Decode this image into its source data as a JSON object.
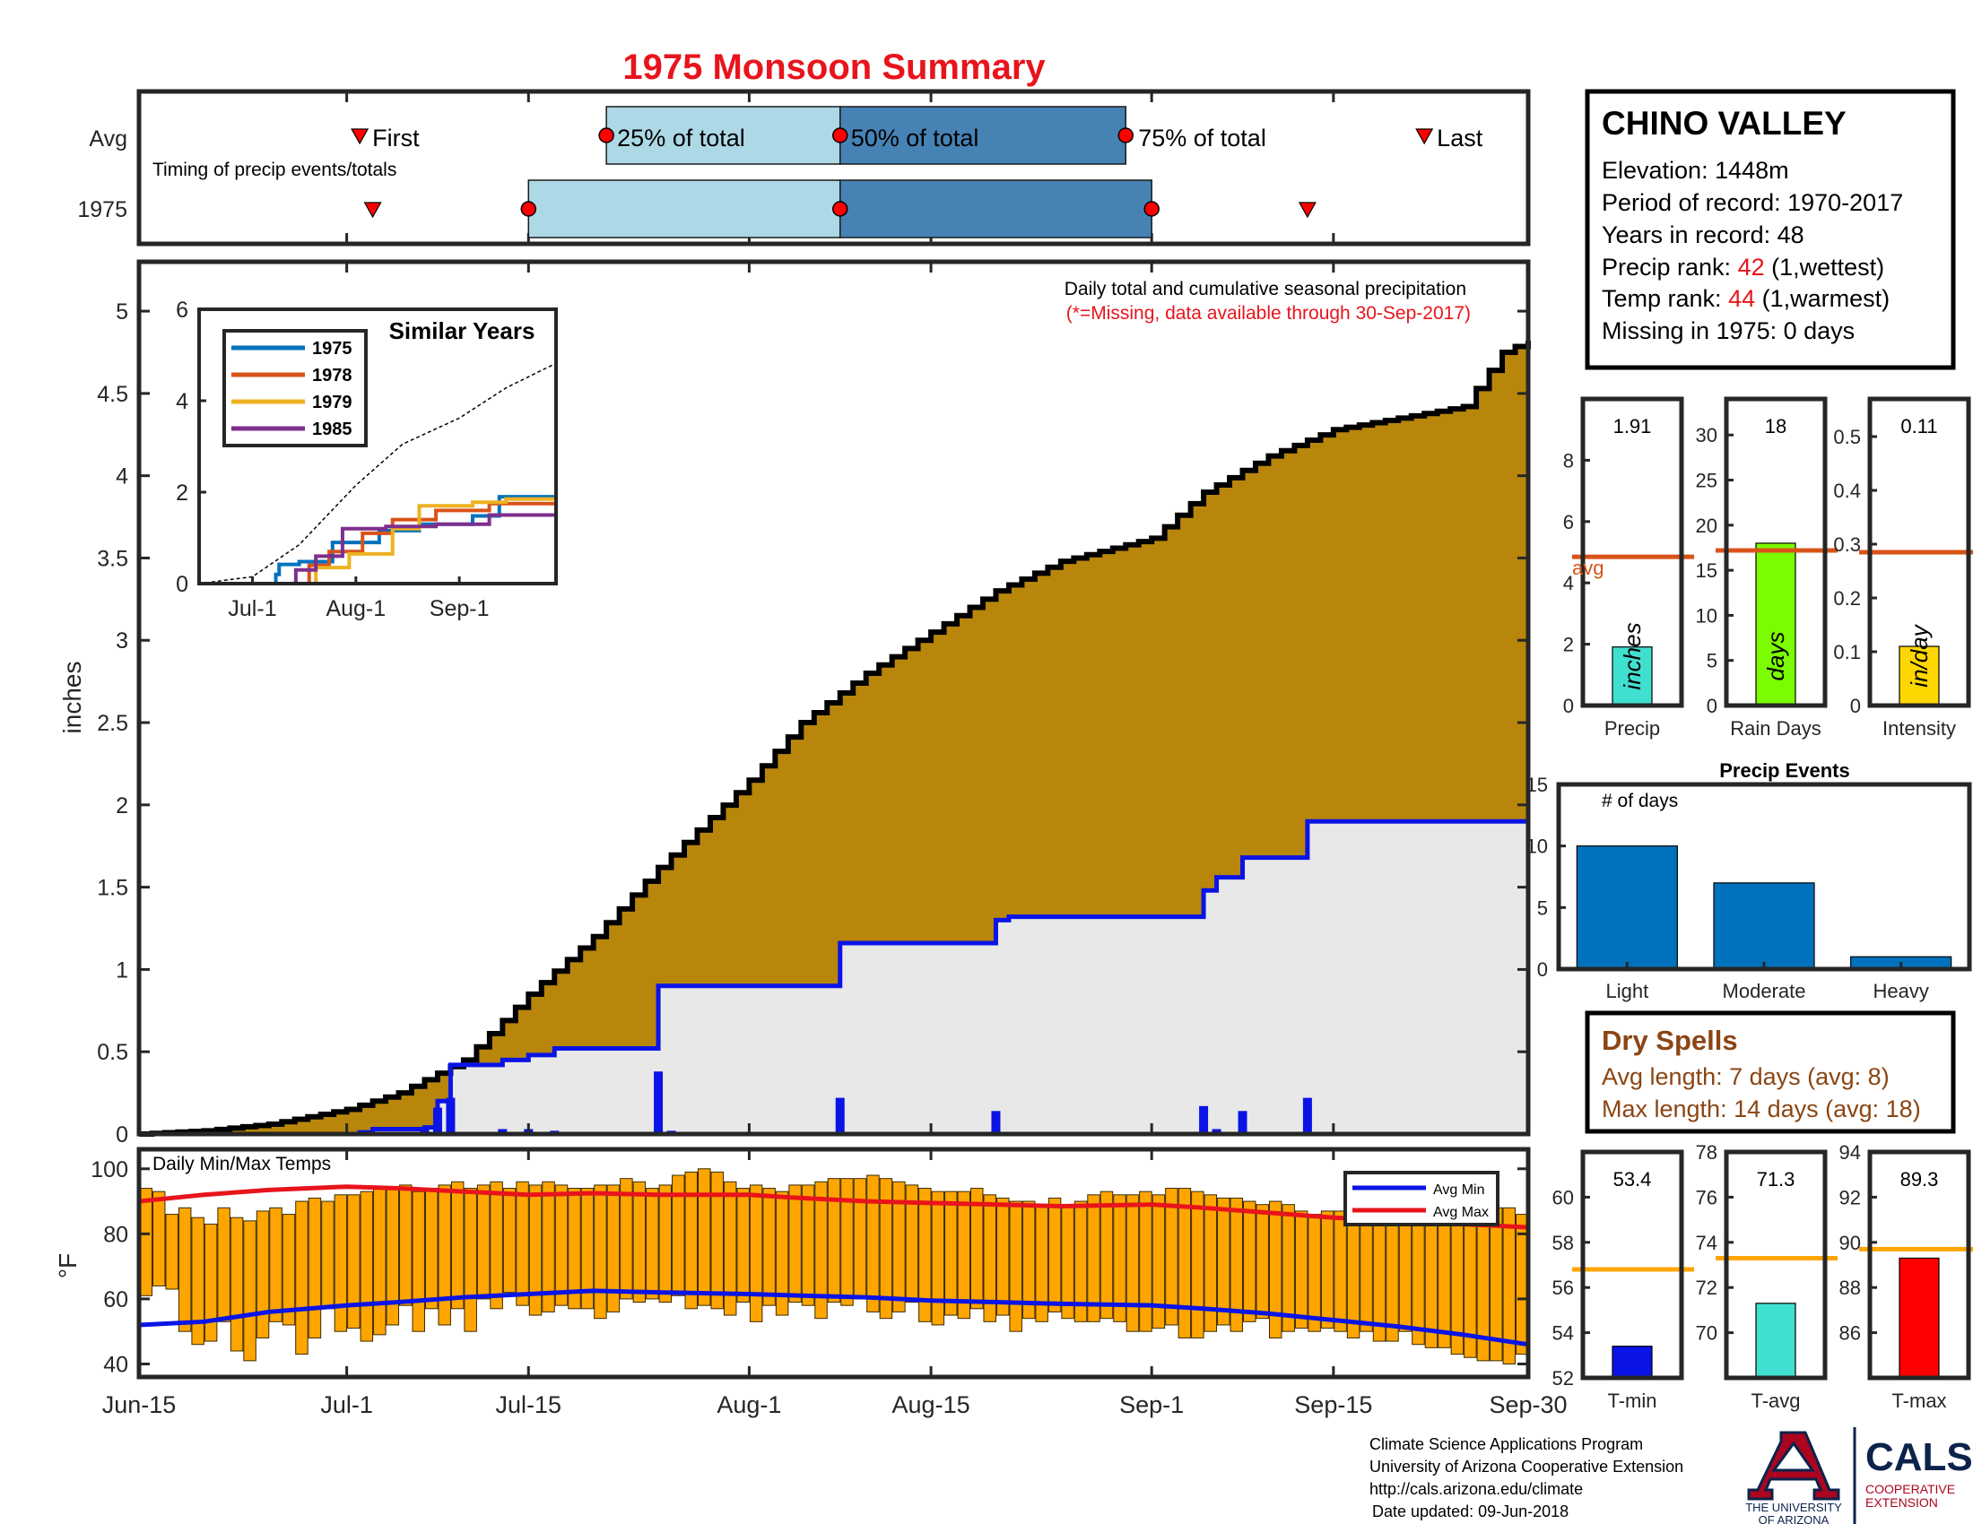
{
  "title": "1975 Monsoon Summary",
  "year_label": "1975",
  "timing": {
    "title": "Timing of precip events/totals",
    "avg_label": "Avg",
    "year_label": "1975",
    "marker_labels": {
      "first": "First",
      "q25": "25% of total",
      "q50": "50% of total",
      "q75": "75% of total",
      "last": "Last"
    },
    "avg": {
      "first": "Jul-2",
      "q25": "Jul-21",
      "q50": "Aug-8",
      "q75": "Aug-30",
      "last": "Sep-22"
    },
    "year": {
      "first": "Jul-3",
      "q25": "Jul-15",
      "q50": "Aug-8",
      "q75": "Sep-1",
      "last": "Sep-13"
    }
  },
  "station": {
    "name": "CHINO VALLEY",
    "elevation_label": "Elevation: 1448m",
    "period_label": "Period of record: 1970-2017",
    "years_label": "Years in record: 48",
    "precip_rank_prefix": "Precip rank: ",
    "precip_rank": "42",
    "precip_rank_suffix": " (1,wettest)",
    "temp_rank_prefix": "Temp rank: ",
    "temp_rank": "44",
    "temp_rank_suffix": " (1,warmest)",
    "missing_label": "Missing in 1975: 0 days"
  },
  "dry_spells": {
    "title": "Dry Spells",
    "avg_line": "Avg length: 7 days (avg: 8)",
    "max_line": "Max length: 14 days (avg: 18)"
  },
  "footer": {
    "line1": "Climate Science Applications Program",
    "line2": "University of Arizona Cooperative Extension",
    "line3": "http://cals.arizona.edu/climate",
    "line4": "Date updated: 09-Jun-2018"
  },
  "logos": {
    "ua_line1": "THE UNIVERSITY",
    "ua_line2": "OF ARIZONA",
    "cals": "CALS",
    "cals_line1": "COOPERATIVE",
    "cals_line2": "EXTENSION"
  },
  "colors": {
    "title": "#e8141c",
    "avg_fill": "#b8860b",
    "year_fill": "#e8e8e8",
    "year_line": "#0a14e6",
    "daily_bar": "#0a14e6",
    "temp_bar": "#ffa500",
    "avg_min": "#0a14e6",
    "avg_max": "#e8141c",
    "q_light": "#add8e6",
    "q_dark": "#4682b4",
    "avg_ref": "#d95319",
    "temp_ref": "#ffa500",
    "dry_spells": "#8b4513",
    "events": "#0072bd",
    "precip_bar": "#40e0d0",
    "raindays_bar": "#7cfc00",
    "intensity_bar": "#ffd700",
    "tmin_bar": "#0a14e6",
    "tavg_bar": "#40e0d0",
    "tmax_bar": "#ff0000"
  },
  "chart_data": [
    {
      "id": "cumulative",
      "type": "area",
      "title": "Daily total and cumulative seasonal precipitation",
      "subtitle": "(*=Missing, data available through 30-Sep-2017)",
      "ylabel": "inches",
      "ylim": [
        0,
        5.3
      ],
      "xlim": [
        "Jun-15",
        "Sep-30"
      ],
      "x_ticks": [
        "Jun-15",
        "Jul-1",
        "Jul-15",
        "Aug-1",
        "Aug-15",
        "Sep-1",
        "Sep-15",
        "Sep-30"
      ],
      "y_ticks": [
        "0",
        "0.5",
        "1",
        "1.5",
        "2",
        "2.5",
        "3",
        "3.5",
        "4",
        "4.5",
        "5"
      ],
      "series": [
        {
          "name": "",
          "kind": "avg-cumulative",
          "x": [
            "Jun-15",
            "Jun-20",
            "Jun-25",
            "Jul-1",
            "Jul-5",
            "Jul-10",
            "Jul-15",
            "Jul-20",
            "Jul-25",
            "Aug-1",
            "Aug-5",
            "Aug-10",
            "Aug-15",
            "Aug-20",
            "Aug-25",
            "Sep-1",
            "Sep-5",
            "Sep-10",
            "Sep-15",
            "Sep-20",
            "Sep-25",
            "Sep-28",
            "Sep-30"
          ],
          "values": [
            0.0,
            0.02,
            0.06,
            0.15,
            0.25,
            0.45,
            0.85,
            1.2,
            1.62,
            2.15,
            2.5,
            2.8,
            3.05,
            3.3,
            3.48,
            3.62,
            3.9,
            4.12,
            4.28,
            4.35,
            4.42,
            4.75,
            4.82
          ]
        },
        {
          "name": "",
          "kind": "year-cumulative",
          "x": [
            "Jun-15",
            "Jul-2",
            "Jul-3",
            "Jul-7",
            "Jul-8",
            "Jul-9",
            "Jul-13",
            "Jul-15",
            "Jul-17",
            "Jul-25",
            "Aug-8",
            "Aug-20",
            "Aug-21",
            "Sep-5",
            "Sep-6",
            "Sep-8",
            "Sep-13",
            "Sep-30"
          ],
          "values": [
            0.0,
            0.01,
            0.03,
            0.04,
            0.2,
            0.42,
            0.45,
            0.48,
            0.52,
            0.9,
            1.16,
            1.3,
            1.32,
            1.48,
            1.56,
            1.68,
            1.9,
            1.9
          ]
        },
        {
          "name": "",
          "kind": "daily-precip",
          "x": [
            "Jul-3",
            "Jul-7",
            "Jul-8",
            "Jul-9",
            "Jul-13",
            "Jul-15",
            "Jul-17",
            "Jul-25",
            "Jul-26",
            "Aug-8",
            "Aug-12",
            "Aug-20",
            "Aug-21",
            "Sep-5",
            "Sep-6",
            "Sep-8",
            "Sep-13"
          ],
          "values": [
            0.01,
            0.03,
            0.16,
            0.22,
            0.03,
            0.03,
            0.02,
            0.38,
            0.02,
            0.22,
            0.01,
            0.14,
            0.01,
            0.17,
            0.03,
            0.14,
            0.22
          ]
        }
      ]
    },
    {
      "id": "similar-years",
      "type": "line",
      "title": "Similar Years",
      "xlim": [
        "Jun-15",
        "Sep-30"
      ],
      "ylim": [
        0,
        6
      ],
      "x_ticks": [
        "Jul-1",
        "Aug-1",
        "Sep-1"
      ],
      "y_ticks": [
        "0",
        "2",
        "4",
        "6"
      ],
      "legend": "top-left",
      "series": [
        {
          "name": "",
          "style": "dashed",
          "x": [
            "Jun-15",
            "Jul-1",
            "Jul-15",
            "Aug-1",
            "Aug-15",
            "Sep-1",
            "Sep-15",
            "Sep-30"
          ],
          "values": [
            0.0,
            0.15,
            0.85,
            2.15,
            3.05,
            3.62,
            4.28,
            4.82
          ]
        },
        {
          "name": "1975",
          "color": "#0072bd",
          "x": [
            "Jun-15",
            "Jul-2",
            "Jul-8",
            "Jul-9",
            "Jul-15",
            "Jul-25",
            "Aug-8",
            "Aug-20",
            "Sep-5",
            "Sep-13",
            "Sep-30"
          ],
          "values": [
            0.0,
            0.0,
            0.2,
            0.42,
            0.48,
            0.9,
            1.16,
            1.3,
            1.48,
            1.9,
            1.9
          ]
        },
        {
          "name": "1978",
          "color": "#d95319",
          "x": [
            "Jun-15",
            "Jul-5",
            "Jul-18",
            "Jul-24",
            "Aug-3",
            "Aug-12",
            "Aug-25",
            "Sep-10",
            "Sep-30"
          ],
          "values": [
            0.0,
            0.0,
            0.4,
            0.7,
            1.1,
            1.4,
            1.6,
            1.75,
            1.8
          ]
        },
        {
          "name": "1979",
          "color": "#edb120",
          "x": [
            "Jun-15",
            "Jul-8",
            "Jul-20",
            "Jul-30",
            "Aug-12",
            "Aug-20",
            "Sep-5",
            "Sep-15",
            "Sep-30"
          ],
          "values": [
            0.0,
            0.0,
            0.35,
            0.65,
            1.2,
            1.7,
            1.78,
            1.85,
            1.85
          ]
        },
        {
          "name": "1985",
          "color": "#7e2f8e",
          "x": [
            "Jun-15",
            "Jul-10",
            "Jul-14",
            "Jul-20",
            "Jul-28",
            "Aug-10",
            "Aug-25",
            "Sep-10",
            "Sep-30"
          ],
          "values": [
            0.0,
            0.0,
            0.3,
            0.6,
            1.2,
            1.25,
            1.3,
            1.5,
            1.6
          ]
        }
      ]
    },
    {
      "id": "temps",
      "type": "bar",
      "title": "Daily Min/Max Temps",
      "ylabel": "°F",
      "ylim": [
        36,
        106
      ],
      "xlim": [
        "Jun-15",
        "Sep-30"
      ],
      "y_ticks": [
        "40",
        "60",
        "80",
        "100"
      ],
      "legend": "top-right",
      "daily_range": {
        "start": "Jun-15",
        "max": [
          94,
          93,
          86,
          88,
          85,
          83,
          88,
          85,
          84,
          87,
          88,
          86,
          90,
          91,
          90,
          92,
          92,
          93,
          94,
          94,
          95,
          93,
          94,
          95,
          96,
          94,
          95,
          96,
          94,
          96,
          95,
          96,
          95,
          94,
          94,
          95,
          95,
          97,
          96,
          94,
          95,
          98,
          99,
          100,
          99,
          96,
          94,
          95,
          94,
          93,
          95,
          95,
          96,
          97,
          97,
          97,
          98,
          97,
          96,
          95,
          94,
          93,
          93,
          93,
          94,
          92,
          91,
          90,
          90,
          89,
          91,
          89,
          90,
          92,
          93,
          92,
          92,
          93,
          92,
          94,
          94,
          93,
          92,
          91,
          91,
          90,
          89,
          90,
          89,
          87,
          86,
          87,
          87,
          87,
          88,
          85,
          85,
          86,
          88,
          89,
          86,
          88,
          89,
          87,
          88,
          88,
          86
        ],
        "min": [
          61,
          64,
          63,
          50,
          46,
          47,
          53,
          44,
          41,
          48,
          53,
          52,
          43,
          48,
          57,
          50,
          51,
          47,
          49,
          52,
          58,
          50,
          57,
          52,
          57,
          50,
          60,
          57,
          62,
          58,
          55,
          56,
          58,
          57,
          57,
          54,
          56,
          60,
          59,
          60,
          59,
          61,
          57,
          58,
          57,
          55,
          59,
          53,
          58,
          55,
          59,
          58,
          54,
          59,
          58,
          60,
          56,
          54,
          56,
          59,
          53,
          52,
          55,
          54,
          57,
          53,
          55,
          50,
          54,
          53,
          56,
          54,
          53,
          53,
          54,
          53,
          50,
          50,
          51,
          52,
          48,
          48,
          50,
          52,
          50,
          53,
          54,
          48,
          50,
          51,
          50,
          51,
          50,
          48,
          50,
          47,
          47,
          50,
          46,
          45,
          45,
          43,
          42,
          41,
          41,
          40,
          43
        ]
      },
      "series": [
        {
          "name": "Avg Min",
          "x": [
            "Jun-15",
            "Jun-20",
            "Jun-25",
            "Jul-1",
            "Jul-5",
            "Jul-10",
            "Jul-15",
            "Jul-20",
            "Jul-25",
            "Aug-1",
            "Aug-5",
            "Aug-10",
            "Aug-15",
            "Aug-20",
            "Aug-25",
            "Sep-1",
            "Sep-5",
            "Sep-10",
            "Sep-15",
            "Sep-20",
            "Sep-25",
            "Sep-30"
          ],
          "values": [
            52,
            53,
            56,
            58,
            59,
            60.5,
            61.5,
            62.5,
            62,
            61.5,
            61,
            60.5,
            59.5,
            59,
            58.5,
            58,
            57,
            55.5,
            53.5,
            51.5,
            49,
            46
          ]
        },
        {
          "name": "Avg Max",
          "x": [
            "Jun-15",
            "Jun-20",
            "Jun-25",
            "Jul-1",
            "Jul-5",
            "Jul-10",
            "Jul-15",
            "Jul-20",
            "Jul-25",
            "Aug-1",
            "Aug-5",
            "Aug-10",
            "Aug-15",
            "Aug-20",
            "Aug-25",
            "Sep-1",
            "Sep-5",
            "Sep-10",
            "Sep-15",
            "Sep-20",
            "Sep-25",
            "Sep-30"
          ],
          "values": [
            90,
            92,
            93.5,
            94.5,
            94,
            93,
            92,
            92.5,
            92,
            92,
            91,
            90,
            89.5,
            89,
            88.5,
            89,
            88,
            86.5,
            85,
            84,
            83,
            82
          ]
        }
      ]
    },
    {
      "id": "precip-total",
      "type": "bar",
      "categories": [
        "Precip"
      ],
      "values": [
        1.91
      ],
      "value_label": "1.91",
      "ylim": [
        0,
        10
      ],
      "y_ticks": [
        "0",
        "2",
        "4",
        "6",
        "8"
      ],
      "avg": 4.85,
      "avg_label": "avg",
      "unit_label": "inches",
      "bar_color": "#40e0d0"
    },
    {
      "id": "rain-days",
      "type": "bar",
      "categories": [
        "Rain Days"
      ],
      "values": [
        18
      ],
      "value_label": "18",
      "ylim": [
        0,
        34
      ],
      "y_ticks": [
        "0",
        "5",
        "10",
        "15",
        "20",
        "25",
        "30"
      ],
      "avg": 17.2,
      "unit_label": "days",
      "bar_color": "#7cfc00"
    },
    {
      "id": "intensity",
      "type": "bar",
      "categories": [
        "Intensity"
      ],
      "values": [
        0.11
      ],
      "value_label": "0.11",
      "ylim": [
        0,
        0.57
      ],
      "y_ticks": [
        "0",
        "0.1",
        "0.2",
        "0.3",
        "0.4",
        "0.5"
      ],
      "avg": 0.285,
      "unit_label": "in/day",
      "bar_color": "#ffd700"
    },
    {
      "id": "precip-events",
      "type": "bar",
      "title": "Precip Events",
      "ylabel": "# of days",
      "categories": [
        "Light",
        "Moderate",
        "Heavy"
      ],
      "values": [
        10,
        7,
        1
      ],
      "ylim": [
        0,
        15
      ],
      "y_ticks": [
        "0",
        "5",
        "10",
        "15"
      ]
    },
    {
      "id": "t-min",
      "type": "bar",
      "categories": [
        "T-min"
      ],
      "values": [
        53.4
      ],
      "value_label": "53.4",
      "ylim": [
        52,
        62
      ],
      "y_ticks": [
        "52",
        "54",
        "56",
        "58",
        "60"
      ],
      "avg": 56.8,
      "bar_color": "#0a14e6"
    },
    {
      "id": "t-avg",
      "type": "bar",
      "categories": [
        "T-avg"
      ],
      "values": [
        71.3
      ],
      "value_label": "71.3",
      "ylim": [
        68,
        78
      ],
      "y_ticks": [
        "70",
        "72",
        "74",
        "76",
        "78"
      ],
      "avg": 73.3,
      "bar_color": "#40e0d0"
    },
    {
      "id": "t-max",
      "type": "bar",
      "categories": [
        "T-max"
      ],
      "values": [
        89.3
      ],
      "value_label": "89.3",
      "ylim": [
        84,
        94
      ],
      "y_ticks": [
        "86",
        "88",
        "90",
        "92",
        "94"
      ],
      "avg": 89.7,
      "bar_color": "#ff0000"
    }
  ]
}
